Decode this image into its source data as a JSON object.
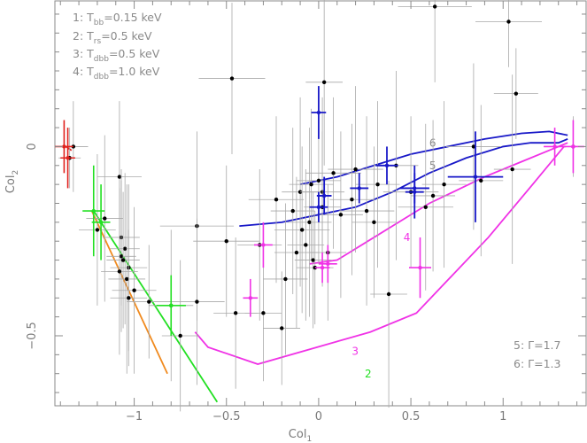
{
  "chart_data": {
    "type": "scatter",
    "title": "",
    "xlabel": "Col",
    "xlabel_sub": "1",
    "ylabel": "Col",
    "ylabel_sub": "2",
    "xlim": [
      -1.43,
      1.45
    ],
    "ylim": [
      -0.685,
      0.385
    ],
    "grid": false,
    "x_ticks": [
      -1,
      -0.5,
      0,
      0.5,
      1
    ],
    "x_tick_labels": [
      "−1",
      "−0.5",
      "0",
      "0.5",
      "1"
    ],
    "y_ticks": [
      0,
      -0.5
    ],
    "y_tick_labels": [
      "0",
      "−0.5"
    ],
    "legend_lines": [
      {
        "num": "1:",
        "sym": "T",
        "sub": "bb",
        "val": "=0.15 keV"
      },
      {
        "num": "2:",
        "sym": "T",
        "sub": "rs",
        "val": "=0.5 keV"
      },
      {
        "num": "3:",
        "sym": "T",
        "sub": "dbb",
        "val": "=0.5 keV"
      },
      {
        "num": "4:",
        "sym": "T",
        "sub": "dbb",
        "val": "=1.0 keV"
      }
    ],
    "legend_lines_right": [
      "5: Γ=1.7",
      "6: Γ=1.3"
    ],
    "colors": {
      "black": "#000000",
      "gray_err": "#a8a8a8",
      "red": "#e0201c",
      "green": "#22e022",
      "orange": "#f08a1e",
      "magenta": "#f032e6",
      "blue": "#1818c8",
      "legend_gray": "#8a8a8a"
    },
    "curves": [
      {
        "name": "1",
        "color": "#e0201c",
        "x": [
          -1.37,
          -1.34
        ],
        "y": [
          0.0,
          -0.01
        ]
      },
      {
        "name": "2",
        "color": "#22e022",
        "x": [
          -1.22,
          -0.55
        ],
        "y": [
          -0.17,
          -0.675
        ],
        "label": "2"
      },
      {
        "name": "2b",
        "color": "#f08a1e",
        "x": [
          -1.23,
          -0.82
        ],
        "y": [
          -0.17,
          -0.6
        ]
      },
      {
        "name": "3",
        "color": "#f032e6",
        "x": [
          -0.67,
          -0.6,
          -0.33,
          0.28,
          0.53,
          0.92,
          1.16,
          1.33
        ],
        "y": [
          -0.49,
          -0.53,
          -0.575,
          -0.49,
          -0.44,
          -0.24,
          -0.1,
          0.0
        ],
        "label": "3"
      },
      {
        "name": "4",
        "color": "#f032e6",
        "x": [
          -0.05,
          0.1,
          0.3,
          0.6,
          0.9,
          1.1,
          1.25,
          1.35
        ],
        "y": [
          -0.31,
          -0.3,
          -0.24,
          -0.15,
          -0.08,
          -0.04,
          -0.01,
          0.01
        ],
        "label": "4"
      },
      {
        "name": "5",
        "color": "#1818c8",
        "x": [
          -0.43,
          -0.2,
          0.0,
          0.2,
          0.4,
          0.6,
          0.8,
          1.0,
          1.15,
          1.3,
          1.35
        ],
        "y": [
          -0.21,
          -0.2,
          -0.18,
          -0.16,
          -0.12,
          -0.07,
          -0.03,
          0.0,
          0.01,
          0.01,
          0.02
        ],
        "label": "5"
      },
      {
        "name": "6",
        "color": "#1818c8",
        "x": [
          -0.1,
          0.1,
          0.3,
          0.5,
          0.7,
          0.9,
          1.1,
          1.25,
          1.35
        ],
        "y": [
          -0.1,
          -0.08,
          -0.05,
          -0.02,
          0.0,
          0.02,
          0.035,
          0.04,
          0.03
        ],
        "label": "6"
      }
    ],
    "points_black": [
      {
        "x": -1.33,
        "y": 0.0,
        "ex": 0.08,
        "ey": 0.12
      },
      {
        "x": -1.35,
        "y": -0.03,
        "ex": 0.06,
        "ey": 0.08
      },
      {
        "x": -1.08,
        "y": -0.08,
        "ex": 0.12,
        "ey": 0.2
      },
      {
        "x": -1.16,
        "y": -0.19,
        "ex": 0.1,
        "ey": 0.22
      },
      {
        "x": -1.2,
        "y": -0.22,
        "ex": 0.1,
        "ey": 0.2
      },
      {
        "x": -1.07,
        "y": -0.24,
        "ex": 0.1,
        "ey": 0.18
      },
      {
        "x": -1.05,
        "y": -0.27,
        "ex": 0.08,
        "ey": 0.2
      },
      {
        "x": -1.07,
        "y": -0.29,
        "ex": 0.08,
        "ey": 0.2
      },
      {
        "x": -1.06,
        "y": -0.3,
        "ex": 0.09,
        "ey": 0.18
      },
      {
        "x": -1.03,
        "y": -0.32,
        "ex": 0.1,
        "ey": 0.22
      },
      {
        "x": -1.08,
        "y": -0.33,
        "ex": 0.1,
        "ey": 0.22
      },
      {
        "x": -1.04,
        "y": -0.35,
        "ex": 0.1,
        "ey": 0.25
      },
      {
        "x": -1.0,
        "y": -0.38,
        "ex": 0.12,
        "ey": 0.22
      },
      {
        "x": -1.03,
        "y": -0.4,
        "ex": 0.1,
        "ey": 0.18
      },
      {
        "x": -0.92,
        "y": -0.41,
        "ex": 0.12,
        "ey": 0.15
      },
      {
        "x": -0.8,
        "y": -0.42,
        "ex": 0.12,
        "ey": 0.2
      },
      {
        "x": -0.75,
        "y": -0.5,
        "ex": 0.1,
        "ey": 0.2
      },
      {
        "x": -0.66,
        "y": -0.21,
        "ex": 0.2,
        "ey": 0.25
      },
      {
        "x": -0.66,
        "y": -0.41,
        "ex": 0.15,
        "ey": 0.22
      },
      {
        "x": -0.45,
        "y": -0.44,
        "ex": 0.12,
        "ey": 0.2
      },
      {
        "x": -0.5,
        "y": -0.25,
        "ex": 0.18,
        "ey": 0.2
      },
      {
        "x": -0.47,
        "y": 0.18,
        "ex": 0.18,
        "ey": 0.2
      },
      {
        "x": -0.32,
        "y": -0.26,
        "ex": 0.12,
        "ey": 0.2
      },
      {
        "x": -0.3,
        "y": -0.44,
        "ex": 0.1,
        "ey": 0.18
      },
      {
        "x": -0.23,
        "y": -0.14,
        "ex": 0.15,
        "ey": 0.22
      },
      {
        "x": -0.2,
        "y": -0.48,
        "ex": 0.1,
        "ey": 0.15
      },
      {
        "x": -0.18,
        "y": -0.35,
        "ex": 0.12,
        "ey": 0.2
      },
      {
        "x": -0.14,
        "y": -0.17,
        "ex": 0.12,
        "ey": 0.22
      },
      {
        "x": -0.12,
        "y": -0.28,
        "ex": 0.12,
        "ey": 0.2
      },
      {
        "x": -0.1,
        "y": -0.12,
        "ex": 0.1,
        "ey": 0.25
      },
      {
        "x": -0.09,
        "y": -0.22,
        "ex": 0.15,
        "ey": 0.22
      },
      {
        "x": -0.07,
        "y": -0.26,
        "ex": 0.1,
        "ey": 0.2
      },
      {
        "x": -0.05,
        "y": -0.2,
        "ex": 0.12,
        "ey": 0.25
      },
      {
        "x": -0.04,
        "y": -0.1,
        "ex": 0.12,
        "ey": 0.2
      },
      {
        "x": -0.03,
        "y": -0.3,
        "ex": 0.1,
        "ey": 0.18
      },
      {
        "x": -0.02,
        "y": -0.32,
        "ex": 0.1,
        "ey": 0.15
      },
      {
        "x": 0.0,
        "y": -0.09,
        "ex": 0.12,
        "ey": 0.22
      },
      {
        "x": 0.02,
        "y": -0.12,
        "ex": 0.12,
        "ey": 0.25
      },
      {
        "x": 0.02,
        "y": -0.16,
        "ex": 0.1,
        "ey": 0.2
      },
      {
        "x": 0.03,
        "y": 0.17,
        "ex": 0.1,
        "ey": 0.22
      },
      {
        "x": 0.05,
        "y": -0.28,
        "ex": 0.1,
        "ey": 0.18
      },
      {
        "x": 0.08,
        "y": -0.07,
        "ex": 0.15,
        "ey": 0.2
      },
      {
        "x": 0.12,
        "y": -0.18,
        "ex": 0.12,
        "ey": 0.22
      },
      {
        "x": 0.18,
        "y": -0.14,
        "ex": 0.12,
        "ey": 0.2
      },
      {
        "x": 0.2,
        "y": -0.06,
        "ex": 0.15,
        "ey": 0.22
      },
      {
        "x": 0.26,
        "y": -0.17,
        "ex": 0.15,
        "ey": 0.25
      },
      {
        "x": 0.3,
        "y": -0.2,
        "ex": 0.12,
        "ey": 0.2
      },
      {
        "x": 0.32,
        "y": -0.1,
        "ex": 0.12,
        "ey": 0.22
      },
      {
        "x": 0.38,
        "y": -0.39,
        "ex": 0.1,
        "ey": 0.3
      },
      {
        "x": 0.42,
        "y": -0.05,
        "ex": 0.12,
        "ey": 0.25
      },
      {
        "x": 0.5,
        "y": -0.12,
        "ex": 0.15,
        "ey": 0.2
      },
      {
        "x": 0.58,
        "y": -0.16,
        "ex": 0.15,
        "ey": 0.22
      },
      {
        "x": 0.62,
        "y": -0.13,
        "ex": 0.12,
        "ey": 0.2
      },
      {
        "x": 0.68,
        "y": -0.1,
        "ex": 0.12,
        "ey": 0.22
      },
      {
        "x": 0.63,
        "y": 0.37,
        "ex": 0.2,
        "ey": 0.2
      },
      {
        "x": 0.84,
        "y": 0.0,
        "ex": 0.15,
        "ey": 0.22
      },
      {
        "x": 0.88,
        "y": -0.09,
        "ex": 0.12,
        "ey": 0.2
      },
      {
        "x": 1.05,
        "y": -0.06,
        "ex": 0.1,
        "ey": 0.25
      },
      {
        "x": 1.03,
        "y": 0.33,
        "ex": 0.18,
        "ey": 0.12
      },
      {
        "x": 1.07,
        "y": 0.14,
        "ex": 0.12,
        "ey": 0.12
      },
      {
        "x": 1.38,
        "y": 0.0,
        "ex": 0.06,
        "ey": 0.08
      }
    ],
    "points_red": [
      {
        "x": -1.38,
        "y": 0.0,
        "ex": 0.05,
        "ey": 0.07
      },
      {
        "x": -1.36,
        "y": -0.03,
        "ex": 0.04,
        "ey": 0.08
      }
    ],
    "points_green": [
      {
        "x": -1.22,
        "y": -0.17,
        "ex": 0.06,
        "ey": 0.12
      },
      {
        "x": -1.18,
        "y": -0.2,
        "ex": 0.05,
        "ey": 0.1
      },
      {
        "x": -0.8,
        "y": -0.42,
        "ex": 0.08,
        "ey": 0.08
      }
    ],
    "points_magenta": [
      {
        "x": -0.3,
        "y": -0.26,
        "ex": 0.05,
        "ey": 0.06
      },
      {
        "x": -0.37,
        "y": -0.4,
        "ex": 0.04,
        "ey": 0.05
      },
      {
        "x": 0.02,
        "y": -0.32,
        "ex": 0.04,
        "ey": 0.04
      },
      {
        "x": 0.05,
        "y": -0.31,
        "ex": 0.05,
        "ey": 0.05
      },
      {
        "x": 0.55,
        "y": -0.32,
        "ex": 0.06,
        "ey": 0.08
      },
      {
        "x": 1.28,
        "y": 0.0,
        "ex": 0.06,
        "ey": 0.05
      },
      {
        "x": 1.38,
        "y": 0.0,
        "ex": 0.06,
        "ey": 0.07
      }
    ],
    "points_blue": [
      {
        "x": 0.0,
        "y": 0.09,
        "ex": 0.04,
        "ey": 0.07
      },
      {
        "x": 0.0,
        "y": -0.16,
        "ex": 0.05,
        "ey": 0.04
      },
      {
        "x": 0.03,
        "y": -0.13,
        "ex": 0.04,
        "ey": 0.05
      },
      {
        "x": 0.22,
        "y": -0.11,
        "ex": 0.05,
        "ey": 0.04
      },
      {
        "x": 0.37,
        "y": -0.05,
        "ex": 0.06,
        "ey": 0.05
      },
      {
        "x": 0.52,
        "y": -0.12,
        "ex": 0.05,
        "ey": 0.07
      },
      {
        "x": 0.52,
        "y": -0.11,
        "ex": 0.08,
        "ey": 0.04
      },
      {
        "x": 0.85,
        "y": -0.08,
        "ex": 0.15,
        "ey": 0.12
      }
    ]
  }
}
